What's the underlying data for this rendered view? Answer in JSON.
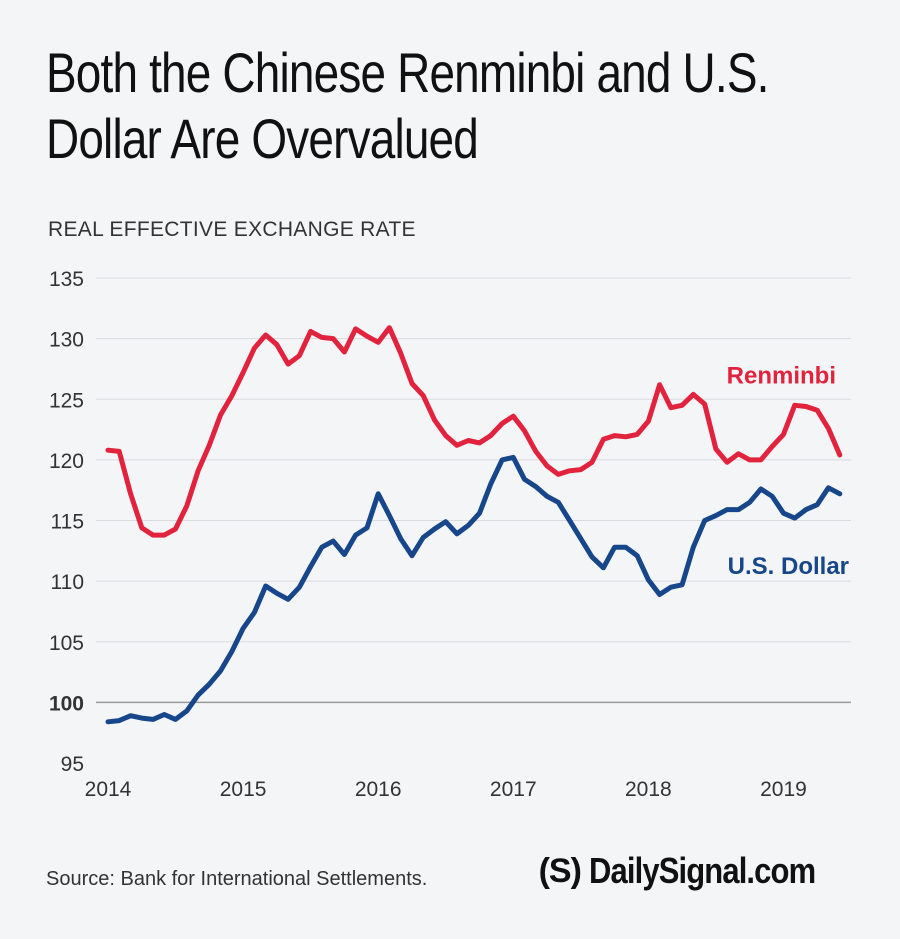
{
  "title_lines": [
    "Both the Chinese Renminbi and U.S.",
    "Dollar Are Overvalued"
  ],
  "colors": {
    "renminbi": "#e2233d",
    "dollar": "#17468b",
    "grid": "#d9dbe0",
    "baseline": "#9a9a9a"
  },
  "source": "Source: Bank for International Settlements.",
  "logo": {
    "mark": "(S)",
    "text": "DailySignal.com"
  },
  "chart_data": {
    "type": "line",
    "ylabel": "REAL EFFECTIVE EXCHANGE RATE",
    "ylim": [
      95,
      135
    ],
    "yticks": [
      95,
      100,
      105,
      110,
      115,
      120,
      125,
      130,
      135
    ],
    "highlighted_ytick": 100,
    "xlim": [
      2014,
      2019.5
    ],
    "xticks": [
      2014,
      2015,
      2016,
      2017,
      2018,
      2019
    ],
    "grid": "horizontal",
    "legend": "direct labels at right",
    "series": [
      {
        "name": "Renminbi",
        "color": "#e2233d",
        "x": [
          2014.0,
          2014.083,
          2014.167,
          2014.25,
          2014.333,
          2014.417,
          2014.5,
          2014.583,
          2014.667,
          2014.75,
          2014.833,
          2014.917,
          2015.0,
          2015.083,
          2015.167,
          2015.25,
          2015.333,
          2015.417,
          2015.5,
          2015.583,
          2015.667,
          2015.75,
          2015.833,
          2015.917,
          2016.0,
          2016.083,
          2016.167,
          2016.25,
          2016.333,
          2016.417,
          2016.5,
          2016.583,
          2016.667,
          2016.75,
          2016.833,
          2016.917,
          2017.0,
          2017.083,
          2017.167,
          2017.25,
          2017.333,
          2017.417,
          2017.5,
          2017.583,
          2017.667,
          2017.75,
          2017.833,
          2017.917,
          2018.0,
          2018.083,
          2018.167,
          2018.25,
          2018.333,
          2018.417,
          2018.5,
          2018.583,
          2018.667,
          2018.75,
          2018.833,
          2018.917,
          2019.0,
          2019.083,
          2019.167,
          2019.25,
          2019.333,
          2019.417
        ],
        "values": [
          120.8,
          120.7,
          117.2,
          114.4,
          113.8,
          113.8,
          114.3,
          116.2,
          119.1,
          121.2,
          123.7,
          125.3,
          127.2,
          129.2,
          130.3,
          129.5,
          127.9,
          128.6,
          130.6,
          130.1,
          130.0,
          128.9,
          130.8,
          130.2,
          129.7,
          130.9,
          128.8,
          126.3,
          125.3,
          123.3,
          122.0,
          121.2,
          121.6,
          121.4,
          122.0,
          123.0,
          123.6,
          122.4,
          120.7,
          119.5,
          118.8,
          119.1,
          119.2,
          119.8,
          121.7,
          122.0,
          121.9,
          122.1,
          123.2,
          126.2,
          124.3,
          124.5,
          125.4,
          124.6,
          120.9,
          119.8,
          120.5,
          120.0,
          120.0,
          121.1,
          122.1,
          124.5,
          124.4,
          124.1,
          122.6,
          120.4
        ]
      },
      {
        "name": "U.S. Dollar",
        "color": "#17468b",
        "x": [
          2014.0,
          2014.083,
          2014.167,
          2014.25,
          2014.333,
          2014.417,
          2014.5,
          2014.583,
          2014.667,
          2014.75,
          2014.833,
          2014.917,
          2015.0,
          2015.083,
          2015.167,
          2015.25,
          2015.333,
          2015.417,
          2015.5,
          2015.583,
          2015.667,
          2015.75,
          2015.833,
          2015.917,
          2016.0,
          2016.083,
          2016.167,
          2016.25,
          2016.333,
          2016.417,
          2016.5,
          2016.583,
          2016.667,
          2016.75,
          2016.833,
          2016.917,
          2017.0,
          2017.083,
          2017.167,
          2017.25,
          2017.333,
          2017.417,
          2017.5,
          2017.583,
          2017.667,
          2017.75,
          2017.833,
          2017.917,
          2018.0,
          2018.083,
          2018.167,
          2018.25,
          2018.333,
          2018.417,
          2018.5,
          2018.583,
          2018.667,
          2018.75,
          2018.833,
          2018.917,
          2019.0,
          2019.083,
          2019.167,
          2019.25,
          2019.333,
          2019.417
        ],
        "values": [
          98.4,
          98.5,
          98.9,
          98.7,
          98.6,
          99.0,
          98.6,
          99.3,
          100.6,
          101.5,
          102.6,
          104.2,
          106.1,
          107.4,
          109.6,
          109.0,
          108.5,
          109.5,
          111.2,
          112.8,
          113.3,
          112.2,
          113.8,
          114.4,
          117.2,
          115.4,
          113.5,
          112.1,
          113.6,
          114.3,
          114.9,
          113.9,
          114.6,
          115.6,
          118.0,
          120.0,
          120.2,
          118.4,
          117.8,
          117.0,
          116.5,
          115.0,
          113.5,
          112.0,
          111.1,
          112.8,
          112.8,
          112.1,
          110.1,
          108.9,
          109.5,
          109.7,
          112.8,
          115.0,
          115.4,
          115.9,
          115.9,
          116.5,
          117.6,
          117.0,
          115.6,
          115.2,
          115.9,
          116.3,
          117.7,
          117.2
        ]
      }
    ]
  }
}
